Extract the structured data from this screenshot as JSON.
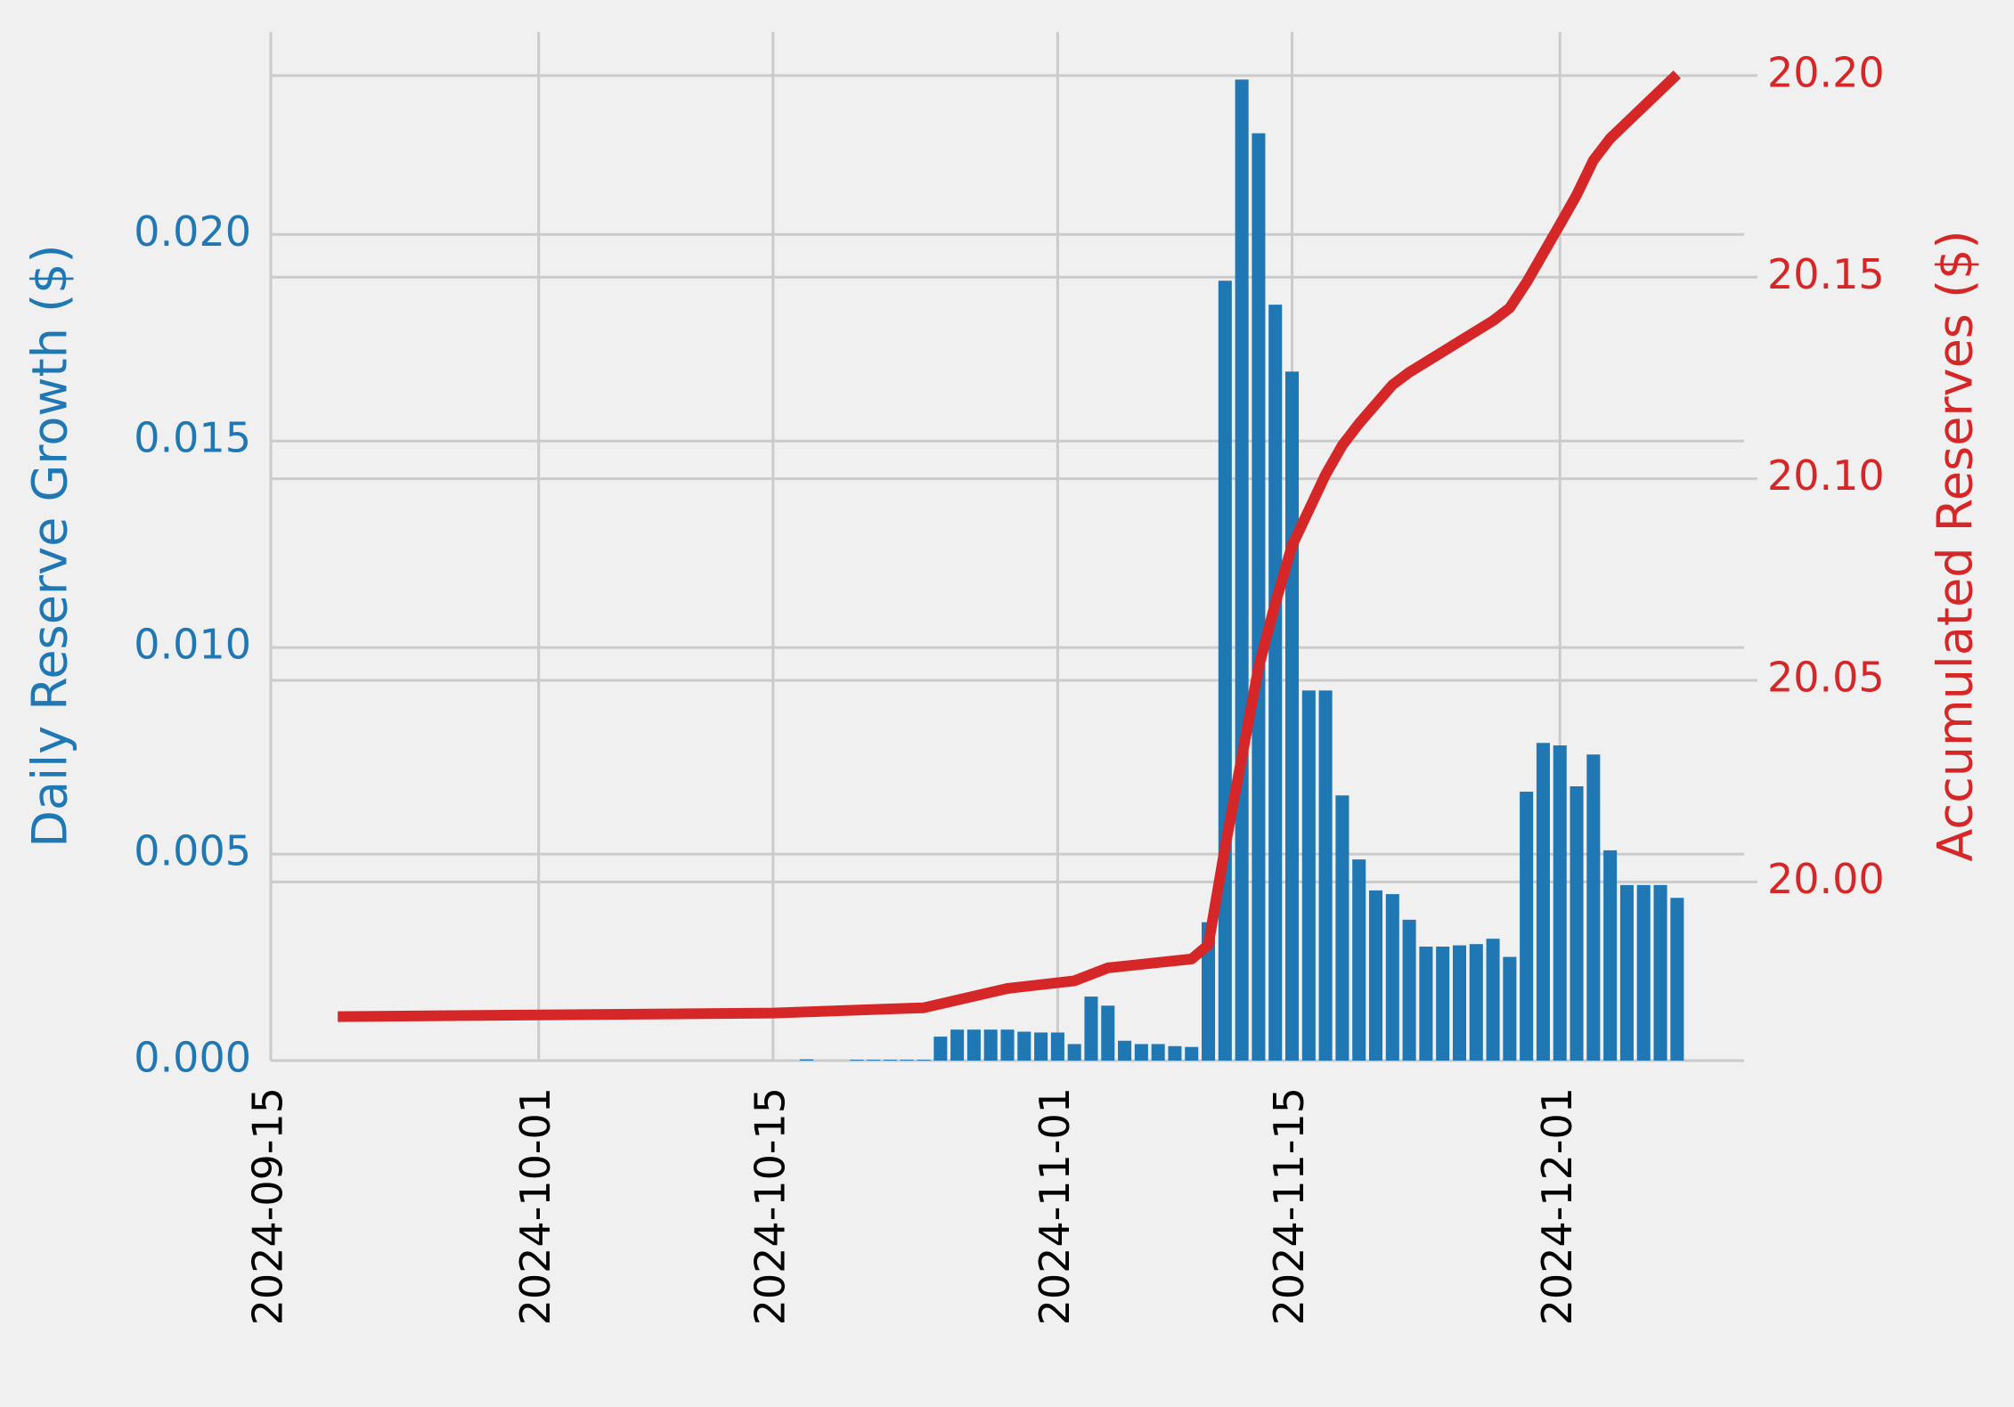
{
  "chart_data": {
    "type": "combo",
    "y_label": "Daily Reserve Growth ($)",
    "y2_label": "Accumulated Reserves ($)",
    "xlim": [
      "2024-09-15",
      "2024-12-12"
    ],
    "xticks": [
      "2024-09-15",
      "2024-10-01",
      "2024-10-15",
      "2024-11-01",
      "2024-11-15",
      "2024-12-01"
    ],
    "ylim": [
      0,
      0.0249
    ],
    "yticks": [
      {
        "value": 0,
        "label": "0.000"
      },
      {
        "value": 0.005,
        "label": "0.005"
      },
      {
        "value": 0.01,
        "label": "0.010"
      },
      {
        "value": 0.015,
        "label": "0.015"
      },
      {
        "value": 0.02,
        "label": "0.020"
      }
    ],
    "y2lim": [
      19.9557,
      20.2108
    ],
    "y2ticks": [
      {
        "value": 20,
        "label": "20.00"
      },
      {
        "value": 20.05,
        "label": "20.05"
      },
      {
        "value": 20.1,
        "label": "20.10"
      },
      {
        "value": 20.15,
        "label": "20.15"
      },
      {
        "value": 20.2,
        "label": "20.20"
      }
    ],
    "y_color": "#1f77b4",
    "y2_color": "#d62728",
    "grid": true,
    "series": [
      {
        "type": "bar",
        "color": "#1f77b4",
        "x": [
          "2024-10-17",
          "2024-10-20",
          "2024-10-21",
          "2024-10-22",
          "2024-10-23",
          "2024-10-24",
          "2024-10-25",
          "2024-10-26",
          "2024-10-27",
          "2024-10-28",
          "2024-10-29",
          "2024-10-30",
          "2024-10-31",
          "2024-11-01",
          "2024-11-02",
          "2024-11-03",
          "2024-11-04",
          "2024-11-05",
          "2024-11-06",
          "2024-11-07",
          "2024-11-08",
          "2024-11-09",
          "2024-11-10",
          "2024-11-11",
          "2024-11-12",
          "2024-11-13",
          "2024-11-14",
          "2024-11-15",
          "2024-11-16",
          "2024-11-17",
          "2024-11-18",
          "2024-11-19",
          "2024-11-20",
          "2024-11-21",
          "2024-11-22",
          "2024-11-23",
          "2024-11-24",
          "2024-11-25",
          "2024-11-26",
          "2024-11-27",
          "2024-11-28",
          "2024-11-29",
          "2024-11-30",
          "2024-12-01",
          "2024-12-02",
          "2024-12-03",
          "2024-12-04",
          "2024-12-05",
          "2024-12-06",
          "2024-12-07",
          "2024-12-08"
        ],
        "values": [
          3e-05,
          2e-05,
          2e-05,
          2e-05,
          2e-05,
          2e-05,
          0.00058,
          0.00075,
          0.00075,
          0.00075,
          0.00075,
          0.0007,
          0.00068,
          0.00068,
          0.0004,
          0.00155,
          0.00133,
          0.00048,
          0.0004,
          0.0004,
          0.00035,
          0.00033,
          0.00335,
          0.01888,
          0.02375,
          0.02245,
          0.0183,
          0.01668,
          0.00896,
          0.00896,
          0.00642,
          0.00487,
          0.00412,
          0.00403,
          0.00341,
          0.00276,
          0.00276,
          0.00279,
          0.00282,
          0.00295,
          0.00251,
          0.00651,
          0.00769,
          0.00763,
          0.00664,
          0.00741,
          0.00509,
          0.00425,
          0.00425,
          0.00425,
          0.00394
        ]
      },
      {
        "type": "line",
        "axis": "y2",
        "color": "#d62728",
        "x": [
          "2024-09-19",
          "2024-10-15",
          "2024-10-24",
          "2024-10-29",
          "2024-11-02",
          "2024-11-04",
          "2024-11-09",
          "2024-11-10",
          "2024-11-11",
          "2024-11-12",
          "2024-11-13",
          "2024-11-14",
          "2024-11-15",
          "2024-11-17",
          "2024-11-18",
          "2024-11-19",
          "2024-11-21",
          "2024-11-22",
          "2024-11-27",
          "2024-11-28",
          "2024-11-29",
          "2024-12-01",
          "2024-12-02",
          "2024-12-03",
          "2024-12-04",
          "2024-12-08"
        ],
        "values": [
          19.9666,
          19.9675,
          19.9688,
          19.9736,
          19.9755,
          19.9787,
          19.9809,
          19.9844,
          20.0086,
          20.0309,
          20.0532,
          20.0691,
          20.0834,
          20.101,
          20.1083,
          20.1137,
          20.1233,
          20.1264,
          20.1392,
          20.1424,
          20.1487,
          20.1631,
          20.1704,
          20.179,
          20.1844,
          20.2003
        ]
      }
    ]
  }
}
